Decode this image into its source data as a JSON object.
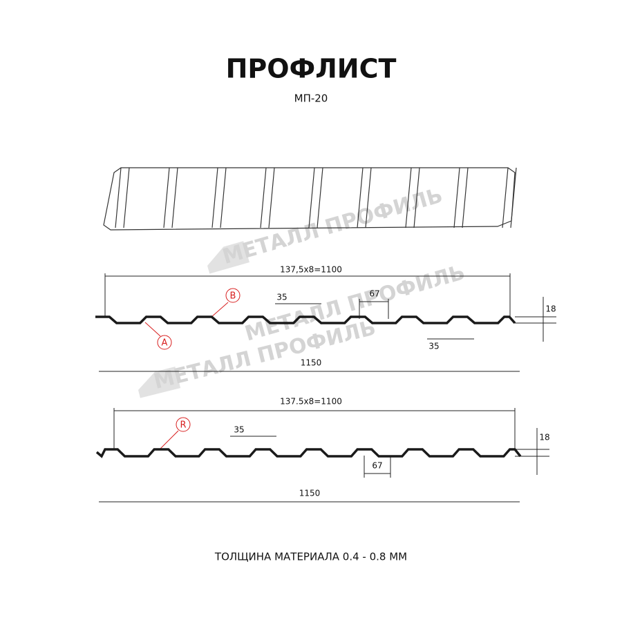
{
  "header": {
    "title": "ПРОФЛИСТ",
    "subtitle": "МП-20"
  },
  "watermark": "МЕТАЛЛ ПРОФИЛЬ",
  "profiles": [
    {
      "overall_pitch": "137,5x8=1100",
      "top_flange": "35",
      "bottom_flange": "67",
      "height": "18",
      "bottom_offset": "35",
      "total_width": "1150",
      "markers": [
        "B",
        "A"
      ]
    },
    {
      "overall_pitch": "137.5x8=1100",
      "top_flange": "35",
      "bottom_flange": "67",
      "height": "18",
      "total_width": "1150",
      "markers": [
        "R"
      ]
    }
  ],
  "footer": "ТОЛЩИНА МАТЕРИАЛА 0.4 - 0.8 ММ"
}
